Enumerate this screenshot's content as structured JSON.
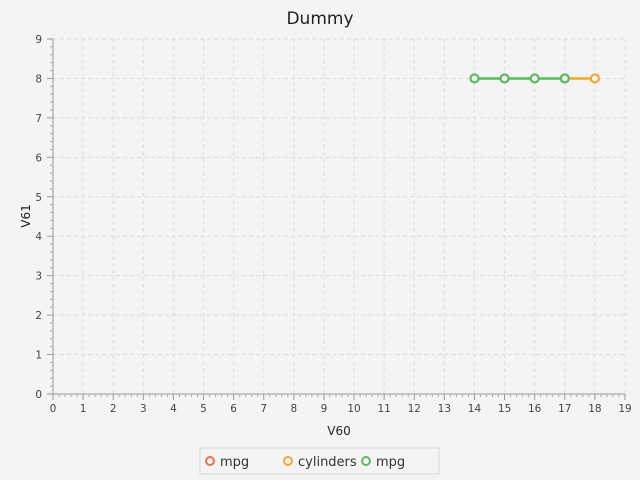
{
  "chart_data": {
    "type": "line",
    "title": "Dummy",
    "xlabel": "V60",
    "ylabel": "V61",
    "xlim": [
      0,
      19
    ],
    "ylim": [
      0,
      9
    ],
    "grid": true,
    "legend_position": "bottom",
    "series": [
      {
        "name": "mpg",
        "color": "#e8734a",
        "x": [],
        "y": []
      },
      {
        "name": "cylinders",
        "color": "#f0a830",
        "x": [
          17,
          18
        ],
        "y": [
          8,
          8
        ]
      },
      {
        "name": "mpg",
        "color": "#5cb85c",
        "x": [
          14,
          15,
          16,
          17
        ],
        "y": [
          8,
          8,
          8,
          8
        ]
      }
    ]
  }
}
